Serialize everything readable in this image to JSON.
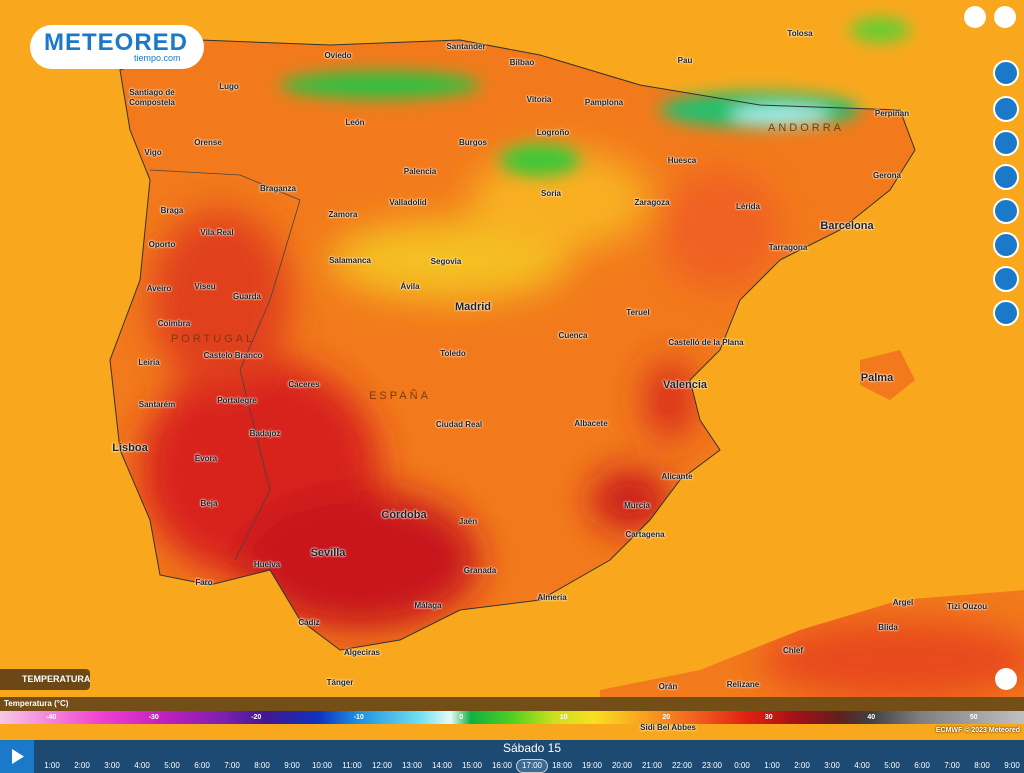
{
  "logo": {
    "brand": "METEORED",
    "site": "tiempo.com"
  },
  "layer_label": "TEMPERATURA",
  "legend": {
    "title": "Temperatura (°C)",
    "ticks": [
      -40,
      -30,
      -20,
      -10,
      0,
      10,
      20,
      30,
      40,
      50
    ],
    "credit": "ECMWF © 2023 Meteored"
  },
  "places": [
    "Oviedo",
    "Santander",
    "Bilbao",
    "Tolosa",
    "Pau",
    "Lugo",
    "Santiago de Compostela",
    "Vitoria",
    "Pamplona",
    "Perpiñan",
    "León",
    "Logroño",
    "ANDORRA",
    "Orense",
    "Vigo",
    "Burgos",
    "Huesca",
    "Gerona",
    "Palencia",
    "Braganza",
    "Soria",
    "Zaragoza",
    "Lérida",
    "Braga",
    "Zamora",
    "Valladolid",
    "Barcelona",
    "Vila Real",
    "Oporto",
    "Tarragona",
    "Salamanca",
    "Segovia",
    "Aveiro",
    "Viseu",
    "Ávila",
    "Guarda",
    "Madrid",
    "Teruel",
    "Coimbra",
    "PORTUGAL",
    "Cuenca",
    "Castelló de la Plana",
    "Leiria",
    "Castelo Branco",
    "Toledo",
    "Palma",
    "Cáceres",
    "Valencia",
    "ESPAÑA",
    "Portalegre",
    "Santarém",
    "Ciudad Real",
    "Albacete",
    "Badajoz",
    "Lisboa",
    "Évora",
    "Alicante",
    "Beja",
    "Córdoba",
    "Murcia",
    "Jaén",
    "Cartagena",
    "Sevilla",
    "Huelva",
    "Granada",
    "Faro",
    "Almería",
    "Málaga",
    "Argel",
    "Tizi Ouzou",
    "Cádiz",
    "Blida",
    "Algeciras",
    "Chlef",
    "Tánger",
    "Orán",
    "Relizane",
    "Sidi Bel Abbes"
  ],
  "timeline": {
    "day": "Sábado 15",
    "selected": "17:00",
    "hours": [
      "1:00",
      "2:00",
      "3:00",
      "4:00",
      "5:00",
      "6:00",
      "7:00",
      "8:00",
      "9:00",
      "10:00",
      "11:00",
      "12:00",
      "13:00",
      "14:00",
      "15:00",
      "16:00",
      "17:00",
      "18:00",
      "19:00",
      "20:00",
      "21:00",
      "22:00",
      "23:00",
      "0:00",
      "1:00",
      "2:00",
      "3:00",
      "4:00",
      "5:00",
      "6:00",
      "7:00",
      "8:00",
      "9:00"
    ]
  }
}
